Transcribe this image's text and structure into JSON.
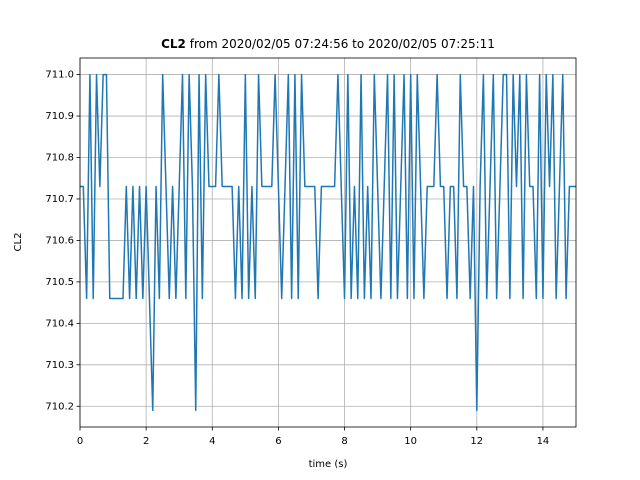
{
  "chart_data": {
    "type": "line",
    "title_bold": "CL2",
    "title_rest": "from 2020/02/05 07:24:56 to 2020/02/05 07:25:11",
    "xlabel": "time (s)",
    "ylabel": "CL2",
    "x": [
      0,
      0.1,
      0.2,
      0.3,
      0.4,
      0.5,
      0.6,
      0.7,
      0.8,
      0.9,
      1,
      1.1,
      1.2,
      1.3,
      1.4,
      1.5,
      1.6,
      1.7,
      1.8,
      1.9,
      2,
      2.1,
      2.2,
      2.3,
      2.4,
      2.5,
      2.6,
      2.7,
      2.8,
      2.9,
      3,
      3.1,
      3.2,
      3.3,
      3.4,
      3.5,
      3.6,
      3.7,
      3.8,
      3.9,
      4,
      4.1,
      4.2,
      4.3,
      4.4,
      4.5,
      4.6,
      4.7,
      4.8,
      4.9,
      5,
      5.1,
      5.2,
      5.3,
      5.4,
      5.5,
      5.6,
      5.7,
      5.8,
      5.9,
      6,
      6.1,
      6.2,
      6.3,
      6.4,
      6.5,
      6.6,
      6.7,
      6.8,
      6.9,
      7,
      7.1,
      7.2,
      7.3,
      7.4,
      7.5,
      7.6,
      7.7,
      7.8,
      7.9,
      8,
      8.1,
      8.2,
      8.3,
      8.4,
      8.5,
      8.6,
      8.7,
      8.8,
      8.9,
      9,
      9.1,
      9.2,
      9.3,
      9.4,
      9.5,
      9.6,
      9.7,
      9.8,
      9.9,
      10,
      10.1,
      10.2,
      10.3,
      10.4,
      10.5,
      10.6,
      10.7,
      10.8,
      10.9,
      11,
      11.1,
      11.2,
      11.3,
      11.4,
      11.5,
      11.6,
      11.7,
      11.8,
      11.9,
      12,
      12.1,
      12.2,
      12.3,
      12.4,
      12.5,
      12.6,
      12.7,
      12.8,
      12.9,
      13,
      13.1,
      13.2,
      13.3,
      13.4,
      13.5,
      13.6,
      13.7,
      13.8,
      13.9,
      14,
      14.1,
      14.2,
      14.3,
      14.4,
      14.5,
      14.6,
      14.7,
      14.8,
      14.9,
      15
    ],
    "series": [
      {
        "name": "CL2",
        "color": "#1f77b4",
        "values": [
          710.73,
          710.73,
          710.46,
          711.0,
          710.46,
          711.0,
          710.73,
          711.0,
          711.0,
          710.46,
          710.46,
          710.46,
          710.46,
          710.46,
          710.73,
          710.46,
          710.73,
          710.46,
          710.73,
          710.46,
          710.73,
          710.46,
          710.19,
          710.73,
          710.46,
          711.0,
          710.73,
          710.46,
          710.73,
          710.46,
          710.73,
          711.0,
          710.46,
          711.0,
          710.73,
          710.19,
          711.0,
          710.46,
          711.0,
          710.73,
          710.73,
          710.73,
          711.0,
          710.73,
          710.73,
          710.73,
          710.73,
          710.46,
          710.73,
          710.46,
          711.0,
          710.46,
          710.73,
          710.46,
          711.0,
          710.73,
          710.73,
          710.73,
          710.73,
          711.0,
          710.73,
          710.46,
          710.73,
          711.0,
          710.46,
          711.0,
          710.46,
          711.0,
          710.73,
          710.73,
          710.73,
          710.73,
          710.46,
          710.73,
          710.73,
          710.73,
          710.73,
          710.73,
          711.0,
          710.73,
          710.46,
          711.0,
          710.46,
          710.73,
          710.46,
          711.0,
          710.46,
          710.73,
          710.46,
          711.0,
          710.73,
          710.46,
          710.73,
          711.0,
          710.46,
          711.0,
          710.46,
          710.73,
          711.0,
          710.46,
          711.0,
          710.46,
          711.0,
          710.73,
          710.46,
          710.73,
          710.73,
          710.73,
          711.0,
          710.73,
          710.73,
          710.46,
          710.73,
          710.73,
          710.46,
          711.0,
          710.73,
          710.73,
          710.46,
          710.73,
          710.19,
          710.73,
          711.0,
          710.46,
          710.73,
          711.0,
          710.46,
          710.73,
          711.0,
          711.0,
          710.46,
          711.0,
          710.73,
          711.0,
          710.46,
          711.0,
          710.73,
          710.73,
          710.46,
          711.0,
          710.46,
          711.0,
          710.73,
          711.0,
          710.46,
          710.73,
          711.0,
          710.46,
          710.73,
          710.73,
          710.73
        ]
      }
    ],
    "xlim": [
      0,
      15
    ],
    "xticks": [
      0,
      2,
      4,
      6,
      8,
      10,
      12,
      14
    ],
    "ylim": [
      710.15,
      711.04
    ],
    "yticks": [
      710.2,
      710.3,
      710.4,
      710.5,
      710.6,
      710.7,
      710.8,
      710.9,
      {
        "value": 711,
        "label": "711.0"
      }
    ],
    "grid": true
  }
}
